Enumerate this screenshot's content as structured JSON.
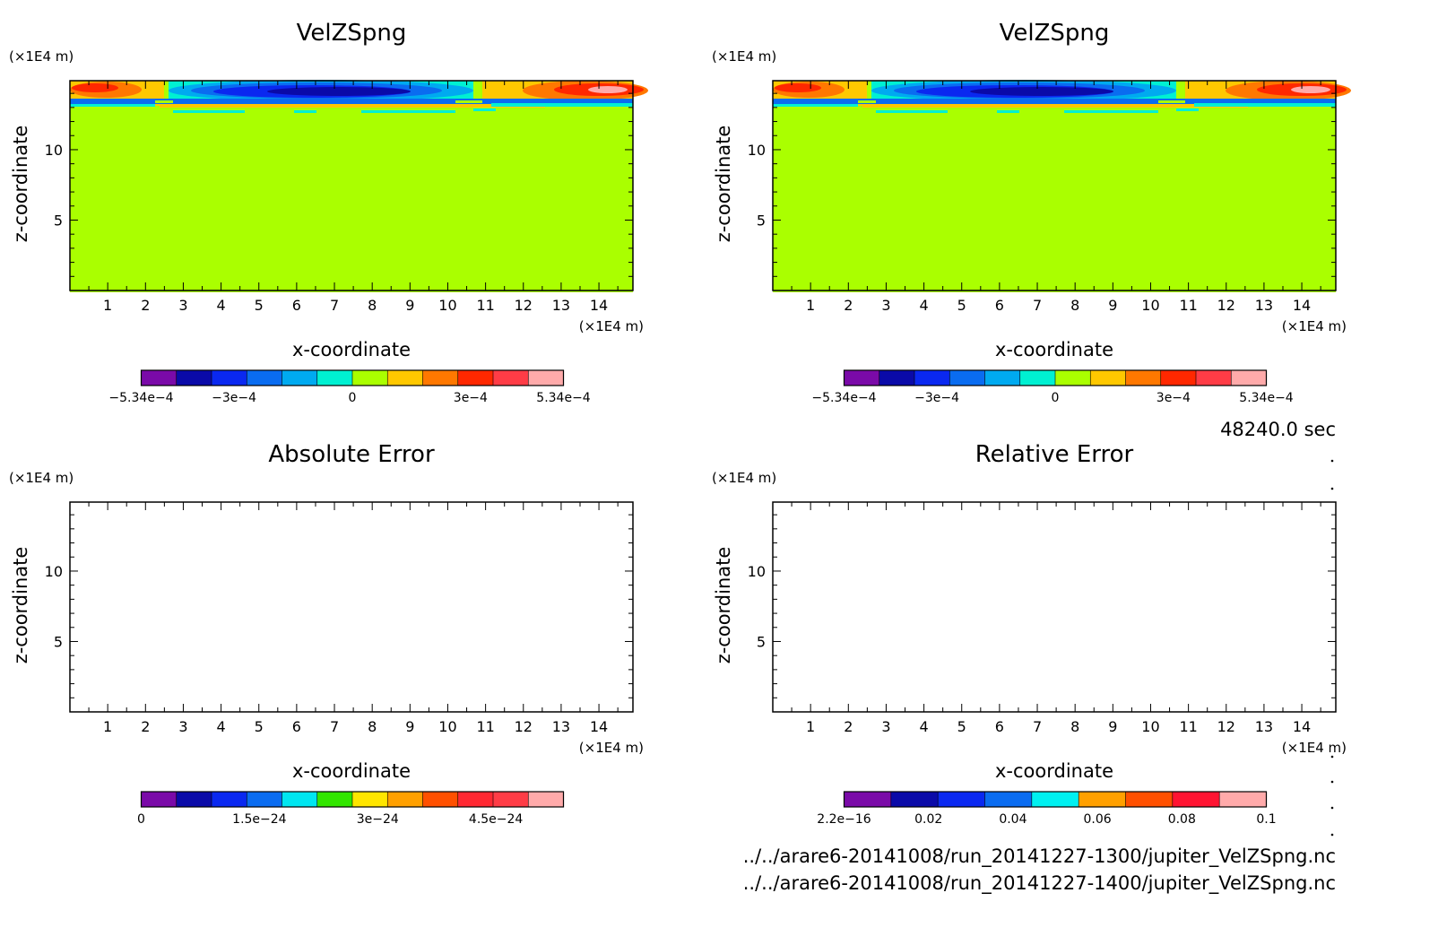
{
  "footer": {
    "time": "48240.0 sec",
    "file1": "../../arare6-20141008/run_20141227-1300/jupiter_VelZSpng.nc",
    "file2": "../../arare6-20141008/run_20141227-1400/jupiter_VelZSpng.nc"
  },
  "chart_data": [
    {
      "type": "heatmap",
      "title": "VelZSpng",
      "xlabel": "x-coordinate",
      "ylabel": "z-coordinate",
      "x_unit": "(×1E4 m)",
      "y_unit": "(×1E4 m)",
      "xlim": [
        0,
        14.9
      ],
      "ylim": [
        0,
        14.9
      ],
      "x_ticks": [
        "1",
        "2",
        "3",
        "4",
        "5",
        "6",
        "7",
        "8",
        "9",
        "10",
        "11",
        "12",
        "13",
        "14"
      ],
      "y_ticks": [
        "5",
        "10"
      ],
      "field": "vertical velocity sponge term; near zero below z≈13, oscillating band in top layer (positive near x≈0–2 and x≈12–15, negative near x≈4–10)",
      "colorbar": {
        "labels": [
          "−5.34e−4",
          "−3e−4",
          "0",
          "3e−4",
          "5.34e−4"
        ],
        "colors": [
          "#7a0aa8",
          "#0a0aa8",
          "#0a28f0",
          "#0a6cf0",
          "#00aaf0",
          "#00f0d2",
          "#aaff00",
          "#ffc800",
          "#ff7800",
          "#ff2800",
          "#ff3c46",
          "#ffaaaa"
        ]
      }
    },
    {
      "type": "heatmap",
      "title": "VelZSpng",
      "xlabel": "x-coordinate",
      "ylabel": "z-coordinate",
      "x_unit": "(×1E4 m)",
      "y_unit": "(×1E4 m)",
      "xlim": [
        0,
        14.9
      ],
      "ylim": [
        0,
        14.9
      ],
      "x_ticks": [
        "1",
        "2",
        "3",
        "4",
        "5",
        "6",
        "7",
        "8",
        "9",
        "10",
        "11",
        "12",
        "13",
        "14"
      ],
      "y_ticks": [
        "5",
        "10"
      ],
      "colorbar": {
        "labels": [
          "−5.34e−4",
          "−3e−4",
          "0",
          "3e−4",
          "5.34e−4"
        ],
        "colors": [
          "#7a0aa8",
          "#0a0aa8",
          "#0a28f0",
          "#0a6cf0",
          "#00aaf0",
          "#00f0d2",
          "#aaff00",
          "#ffc800",
          "#ff7800",
          "#ff2800",
          "#ff3c46",
          "#ffaaaa"
        ]
      }
    },
    {
      "type": "heatmap",
      "title": "Absolute Error",
      "xlabel": "x-coordinate",
      "ylabel": "z-coordinate",
      "x_unit": "(×1E4 m)",
      "y_unit": "(×1E4 m)",
      "xlim": [
        0,
        14.9
      ],
      "ylim": [
        0,
        14.9
      ],
      "x_ticks": [
        "1",
        "2",
        "3",
        "4",
        "5",
        "6",
        "7",
        "8",
        "9",
        "10",
        "11",
        "12",
        "13",
        "14"
      ],
      "y_ticks": [
        "5",
        "10"
      ],
      "field": "empty (no nonzero error plotted)",
      "colorbar": {
        "labels": [
          "0",
          "1.5e−24",
          "3e−24",
          "4.5e−24"
        ],
        "colors": [
          "#7a0aa8",
          "#0a0aa8",
          "#0a28f0",
          "#0a6cf0",
          "#00e6f0",
          "#32e600",
          "#ffe600",
          "#ffa000",
          "#ff5000",
          "#ff2832",
          "#ff3c46",
          "#ffaaaa"
        ]
      }
    },
    {
      "type": "heatmap",
      "title": "Relative Error",
      "xlabel": "x-coordinate",
      "ylabel": "z-coordinate",
      "x_unit": "(×1E4 m)",
      "y_unit": "(×1E4 m)",
      "xlim": [
        0,
        14.9
      ],
      "ylim": [
        0,
        14.9
      ],
      "x_ticks": [
        "1",
        "2",
        "3",
        "4",
        "5",
        "6",
        "7",
        "8",
        "9",
        "10",
        "11",
        "12",
        "13",
        "14"
      ],
      "y_ticks": [
        "5",
        "10"
      ],
      "field": "empty (no nonzero error plotted)",
      "colorbar": {
        "labels": [
          "2.2e−16",
          "0.02",
          "0.04",
          "0.06",
          "0.08",
          "0.1"
        ],
        "colors": [
          "#7a0aa8",
          "#0a0aa8",
          "#0a28f0",
          "#0a6cf0",
          "#00f0f0",
          "#ffa000",
          "#ff5000",
          "#ff1432",
          "#ffaaaa"
        ]
      }
    }
  ]
}
